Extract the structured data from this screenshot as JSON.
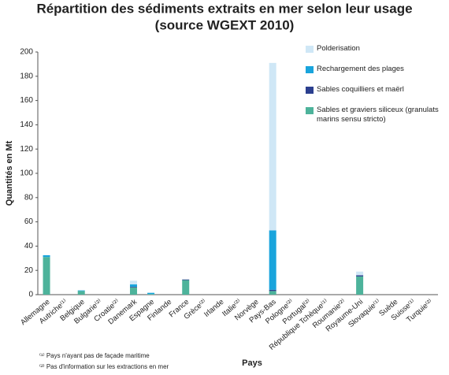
{
  "chart_data": {
    "type": "stacked_bar",
    "title": "Répartition des sédiments extraits en mer selon leur usage",
    "subtitle": "(source WGEXT 2010)",
    "y_label": "Quantités en Mt",
    "x_label": "Pays",
    "footnotes": [
      "⁽¹⁾ Pays n'ayant pas de façade maritime",
      "⁽²⁾ Pas d'information sur les extractions en mer"
    ],
    "categories": [
      "Allemagne",
      "Autriche⁽¹⁾",
      "Belgique",
      "Bulgarie⁽²⁾",
      "Croatie⁽²⁾",
      "Danemark",
      "Espagne",
      "Finlande",
      "France",
      "Grèce⁽²⁾",
      "Irlande",
      "Italie⁽²⁾",
      "Norvège",
      "Pays-Bas",
      "Pologne⁽²⁾",
      "Portugal⁽²⁾",
      "République Tchèque⁽¹⁾",
      "Roumanie⁽²⁾",
      "Royaume-Uni",
      "Slovaquie⁽¹⁾",
      "Suède",
      "Suisse⁽¹⁾",
      "Turquie⁽²⁾"
    ],
    "series": [
      {
        "name": "Sables et graviers siliceux (granulats marins sensu stricto)",
        "color": "#4db39b",
        "values": [
          31,
          0,
          3,
          0,
          0,
          6,
          0.5,
          0,
          12,
          0,
          0,
          0,
          0,
          3,
          0,
          0,
          0,
          0,
          15,
          0,
          0,
          0,
          0
        ]
      },
      {
        "name": "Sables coquilliers et maërl",
        "color": "#2b3f8f",
        "values": [
          0,
          0,
          0,
          0,
          0,
          0.5,
          0,
          0,
          0.5,
          0,
          0,
          0,
          0,
          1,
          0,
          0,
          0,
          0,
          1,
          0,
          0,
          0,
          0
        ]
      },
      {
        "name": "Rechargement des plages",
        "color": "#19a4dc",
        "values": [
          1.5,
          0,
          0.5,
          0,
          0,
          2,
          1,
          0,
          0,
          0,
          0,
          0,
          0,
          49,
          0,
          0,
          0,
          0,
          0,
          0,
          0,
          0,
          0
        ]
      },
      {
        "name": "Polderisation",
        "color": "#cfe7f6",
        "values": [
          0,
          0,
          0,
          0,
          0,
          3,
          0,
          0,
          0,
          0,
          0,
          0,
          0,
          138,
          0,
          0,
          0,
          0,
          3,
          0,
          0,
          0,
          0
        ]
      }
    ],
    "ylim": [
      0,
      200
    ],
    "yticks": [
      0,
      20,
      40,
      60,
      80,
      100,
      120,
      140,
      160,
      180,
      200
    ],
    "grid": false
  }
}
